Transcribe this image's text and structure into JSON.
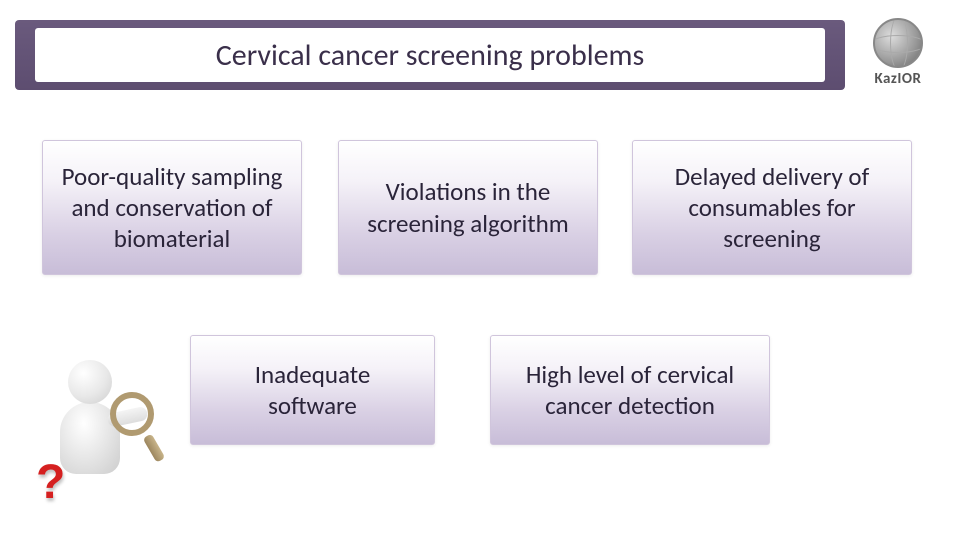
{
  "title": "Cervical cancer screening problems",
  "logo": {
    "brand": "KazIOR",
    "sub": ""
  },
  "cards": {
    "c1": "Poor-quality sampling and conservation of biomaterial",
    "c2": "Violations in the screening algorithm",
    "c3": "Delayed delivery of consumables for screening",
    "c4": "Inadequate software",
    "c5": "High level of cervical cancer detection"
  },
  "figure": {
    "question_mark": "?"
  },
  "colors": {
    "title_bar": "#5d4d70",
    "card_gradient_top": "#ffffff",
    "card_gradient_bottom": "#c8bdd8",
    "text": "#2a2439",
    "qmark": "#d52020"
  }
}
